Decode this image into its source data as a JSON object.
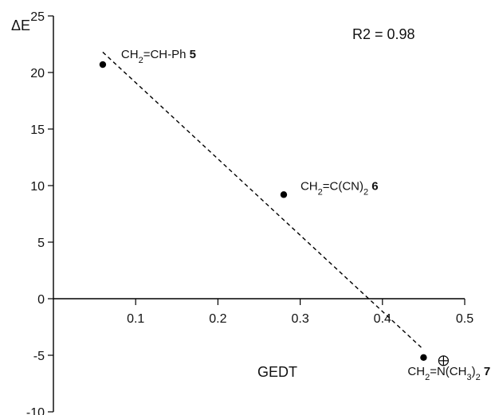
{
  "chart_data": {
    "type": "scatter",
    "title": "",
    "xlabel": "GEDT",
    "ylabel": "ΔE",
    "xlim": [
      0,
      0.5
    ],
    "ylim": [
      -10,
      25
    ],
    "x_ticks": [
      {
        "value": 0.1,
        "label": "0.1"
      },
      {
        "value": 0.2,
        "label": "0.2"
      },
      {
        "value": 0.3,
        "label": "0.3"
      },
      {
        "value": 0.4,
        "label": "0.4"
      },
      {
        "value": 0.5,
        "label": "0.5"
      }
    ],
    "y_ticks": [
      {
        "value": 25,
        "label": "25"
      },
      {
        "value": 20,
        "label": "20"
      },
      {
        "value": 15,
        "label": "15"
      },
      {
        "value": 10,
        "label": "10"
      },
      {
        "value": 5,
        "label": "5"
      },
      {
        "value": 0,
        "label": "0"
      },
      {
        "value": -5,
        "label": "-5"
      },
      {
        "value": -10,
        "label": "-10"
      }
    ],
    "grid": false,
    "legend": "none",
    "r2_label": "R2 = 0.98",
    "points": [
      {
        "x": 0.06,
        "y": 20.7,
        "label_parts": [
          "CH",
          "2",
          "=CH-Ph "
        ],
        "number": "5"
      },
      {
        "x": 0.28,
        "y": 9.2,
        "label_parts": [
          "CH",
          "2",
          "=C(CN)",
          "2",
          " "
        ],
        "number": "6"
      },
      {
        "x": 0.45,
        "y": -5.2,
        "label_parts": [
          "CH",
          "2",
          "=N(CH",
          "3",
          ")",
          "2",
          " "
        ],
        "number": "7"
      }
    ],
    "fit_line": {
      "x1": 0.06,
      "y1": 21.8,
      "x2": 0.45,
      "y2": -4.5
    }
  }
}
